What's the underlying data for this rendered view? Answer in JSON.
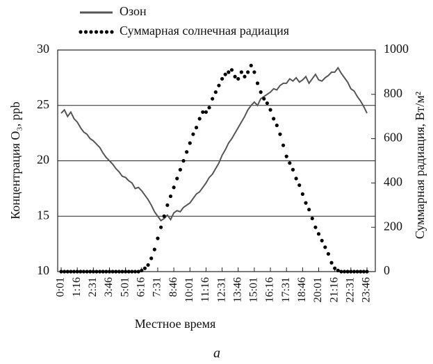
{
  "chart_data": {
    "type": "line",
    "caption": "а",
    "xlabel": "Местное время",
    "ylabel": "Концентрация O₃, ppb",
    "y2label": "Суммарная радиация, Вт/м²",
    "categories": [
      "0:01",
      null,
      null,
      null,
      null,
      "1:16",
      null,
      null,
      null,
      null,
      "2:31",
      null,
      null,
      null,
      null,
      "3:46",
      null,
      null,
      null,
      null,
      "5:01",
      null,
      null,
      null,
      null,
      "6:16",
      null,
      null,
      null,
      null,
      "7:31",
      null,
      null,
      null,
      null,
      "8:46",
      null,
      null,
      null,
      null,
      "10:01",
      null,
      null,
      null,
      null,
      "11:16",
      null,
      null,
      null,
      null,
      "12:31",
      null,
      null,
      null,
      null,
      "13:46",
      null,
      null,
      null,
      null,
      "15:01",
      null,
      null,
      null,
      null,
      "16:16",
      null,
      null,
      null,
      null,
      "17:31",
      null,
      null,
      null,
      null,
      "18:46",
      null,
      null,
      null,
      null,
      "20:01",
      null,
      null,
      null,
      null,
      "21:16",
      null,
      null,
      null,
      null,
      "22:31",
      null,
      null,
      null,
      null,
      "23:46"
    ],
    "ylim": [
      10,
      30
    ],
    "yticks": [
      10,
      15,
      20,
      25,
      30
    ],
    "y2lim": [
      0,
      1000
    ],
    "y2ticks": [
      0,
      200,
      400,
      600,
      800,
      1000
    ],
    "grid": true,
    "series": [
      {
        "name": "Озон",
        "color": "#555555",
        "style": "line",
        "values": [
          24.3,
          24.6,
          24.0,
          24.4,
          23.8,
          23.5,
          23.0,
          22.6,
          22.4,
          22.0,
          21.8,
          21.5,
          21.2,
          20.7,
          20.3,
          20.0,
          19.7,
          19.3,
          19.0,
          18.6,
          18.5,
          18.2,
          18.0,
          17.5,
          17.6,
          17.3,
          16.9,
          16.5,
          16.0,
          15.4,
          15.0,
          14.6,
          14.8,
          15.1,
          14.7,
          15.3,
          15.5,
          15.4,
          15.8,
          16.0,
          16.2,
          16.6,
          17.0,
          17.2,
          17.6,
          18.0,
          18.5,
          18.8,
          19.3,
          19.8,
          20.5,
          21.0,
          21.6,
          22.0,
          22.5,
          23.0,
          23.5,
          24.0,
          24.6,
          25.0,
          25.3,
          25.0,
          25.6,
          25.8,
          26.0,
          26.2,
          26.5,
          26.4,
          26.8,
          27.0,
          27.0,
          27.4,
          27.2,
          27.5,
          27.1,
          27.3,
          27.6,
          27.0,
          27.4,
          27.8,
          27.3,
          27.2,
          27.5,
          27.7,
          28.0,
          28.0,
          28.4,
          27.9,
          27.5,
          27.1,
          26.5,
          26.3,
          25.8,
          25.4,
          24.9,
          24.3
        ]
      },
      {
        "name": "Суммарная солнечная радиация",
        "color": "#000000",
        "style": "dots",
        "axis": "y2",
        "values": [
          0,
          0,
          0,
          0,
          0,
          0,
          0,
          0,
          0,
          0,
          0,
          0,
          0,
          0,
          0,
          0,
          0,
          0,
          0,
          0,
          0,
          0,
          0,
          0,
          0,
          5,
          15,
          30,
          60,
          100,
          150,
          200,
          250,
          300,
          340,
          380,
          420,
          460,
          500,
          540,
          580,
          620,
          650,
          690,
          720,
          720,
          740,
          780,
          810,
          840,
          870,
          890,
          900,
          910,
          880,
          870,
          900,
          880,
          900,
          930,
          900,
          850,
          810,
          780,
          760,
          730,
          690,
          660,
          620,
          570,
          520,
          490,
          460,
          420,
          390,
          350,
          310,
          280,
          240,
          200,
          170,
          140,
          110,
          80,
          40,
          15,
          5,
          0,
          0,
          0,
          0,
          0,
          0,
          0,
          0,
          0
        ]
      }
    ]
  }
}
